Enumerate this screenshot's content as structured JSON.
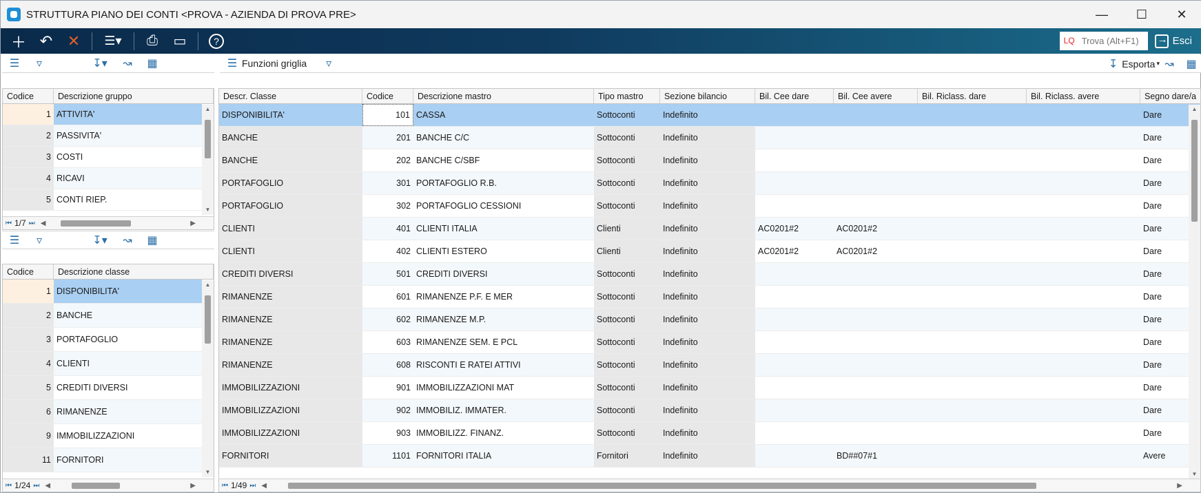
{
  "window": {
    "title": "STRUTTURA PIANO DEI CONTI <PROVA - AZIENDA DI PROVA PRE>"
  },
  "toolbar": {
    "lq_label": "LQ",
    "search_placeholder": "Trova (Alt+F1)",
    "exit_label": "Esci"
  },
  "right_subbar": {
    "grid_functions_label": "Funzioni griglia",
    "export_label": "Esporta"
  },
  "groups_grid": {
    "headers": [
      "Codice",
      "Descrizione gruppo"
    ],
    "rows": [
      {
        "code": "1",
        "desc": "ATTIVITA'"
      },
      {
        "code": "2",
        "desc": "PASSIVITA'"
      },
      {
        "code": "3",
        "desc": "COSTI"
      },
      {
        "code": "4",
        "desc": "RICAVI"
      },
      {
        "code": "5",
        "desc": "CONTI RIEP."
      }
    ],
    "pager": "1/7"
  },
  "classes_grid": {
    "headers": [
      "Codice",
      "Descrizione classe"
    ],
    "rows": [
      {
        "code": "1",
        "desc": "DISPONIBILITA'"
      },
      {
        "code": "2",
        "desc": "BANCHE"
      },
      {
        "code": "3",
        "desc": "PORTAFOGLIO"
      },
      {
        "code": "4",
        "desc": "CLIENTI"
      },
      {
        "code": "5",
        "desc": "CREDITI DIVERSI"
      },
      {
        "code": "6",
        "desc": "RIMANENZE"
      },
      {
        "code": "9",
        "desc": "IMMOBILIZZAZIONI"
      },
      {
        "code": "11",
        "desc": "FORNITORI"
      }
    ],
    "pager": "1/24"
  },
  "main_grid": {
    "headers": [
      "Descr. Classe",
      "Codice",
      "Descrizione mastro",
      "Tipo mastro",
      "Sezione bilancio",
      "Bil. Cee dare",
      "Bil. Cee avere",
      "Bil. Riclass. dare",
      "Bil. Riclass. avere",
      "Segno dare/a"
    ],
    "rows": [
      [
        "DISPONIBILITA'",
        "101",
        "CASSA",
        "Sottoconti",
        "Indefinito",
        "",
        "",
        "",
        "",
        "Dare"
      ],
      [
        "BANCHE",
        "201",
        "BANCHE C/C",
        "Sottoconti",
        "Indefinito",
        "",
        "",
        "",
        "",
        "Dare"
      ],
      [
        "BANCHE",
        "202",
        "BANCHE C/SBF",
        "Sottoconti",
        "Indefinito",
        "",
        "",
        "",
        "",
        "Dare"
      ],
      [
        "PORTAFOGLIO",
        "301",
        "PORTAFOGLIO R.B.",
        "Sottoconti",
        "Indefinito",
        "",
        "",
        "",
        "",
        "Dare"
      ],
      [
        "PORTAFOGLIO",
        "302",
        "PORTAFOGLIO CESSIONI",
        "Sottoconti",
        "Indefinito",
        "",
        "",
        "",
        "",
        "Dare"
      ],
      [
        "CLIENTI",
        "401",
        "CLIENTI ITALIA",
        "Clienti",
        "Indefinito",
        "AC0201#2",
        "AC0201#2",
        "",
        "",
        "Dare"
      ],
      [
        "CLIENTI",
        "402",
        "CLIENTI ESTERO",
        "Clienti",
        "Indefinito",
        "AC0201#2",
        "AC0201#2",
        "",
        "",
        "Dare"
      ],
      [
        "CREDITI DIVERSI",
        "501",
        "CREDITI DIVERSI",
        "Sottoconti",
        "Indefinito",
        "",
        "",
        "",
        "",
        "Dare"
      ],
      [
        "RIMANENZE",
        "601",
        "RIMANENZE P.F. E MER",
        "Sottoconti",
        "Indefinito",
        "",
        "",
        "",
        "",
        "Dare"
      ],
      [
        "RIMANENZE",
        "602",
        "RIMANENZE M.P.",
        "Sottoconti",
        "Indefinito",
        "",
        "",
        "",
        "",
        "Dare"
      ],
      [
        "RIMANENZE",
        "603",
        "RIMANENZE SEM. E PCL",
        "Sottoconti",
        "Indefinito",
        "",
        "",
        "",
        "",
        "Dare"
      ],
      [
        "RIMANENZE",
        "608",
        "RISCONTI E RATEI  ATTIVI",
        "Sottoconti",
        "Indefinito",
        "",
        "",
        "",
        "",
        "Dare"
      ],
      [
        "IMMOBILIZZAZIONI",
        "901",
        "IMMOBILIZZAZIONI MAT",
        "Sottoconti",
        "Indefinito",
        "",
        "",
        "",
        "",
        "Dare"
      ],
      [
        "IMMOBILIZZAZIONI",
        "902",
        "IMMOBILIZ. IMMATER.",
        "Sottoconti",
        "Indefinito",
        "",
        "",
        "",
        "",
        "Dare"
      ],
      [
        "IMMOBILIZZAZIONI",
        "903",
        "IMMOBILIZZ. FINANZ.",
        "Sottoconti",
        "Indefinito",
        "",
        "",
        "",
        "",
        "Dare"
      ],
      [
        "FORNITORI",
        "1101",
        "FORNITORI ITALIA",
        "Fornitori",
        "Indefinito",
        "",
        "BD##07#1",
        "",
        "",
        "Avere"
      ]
    ],
    "pager": "1/49"
  }
}
